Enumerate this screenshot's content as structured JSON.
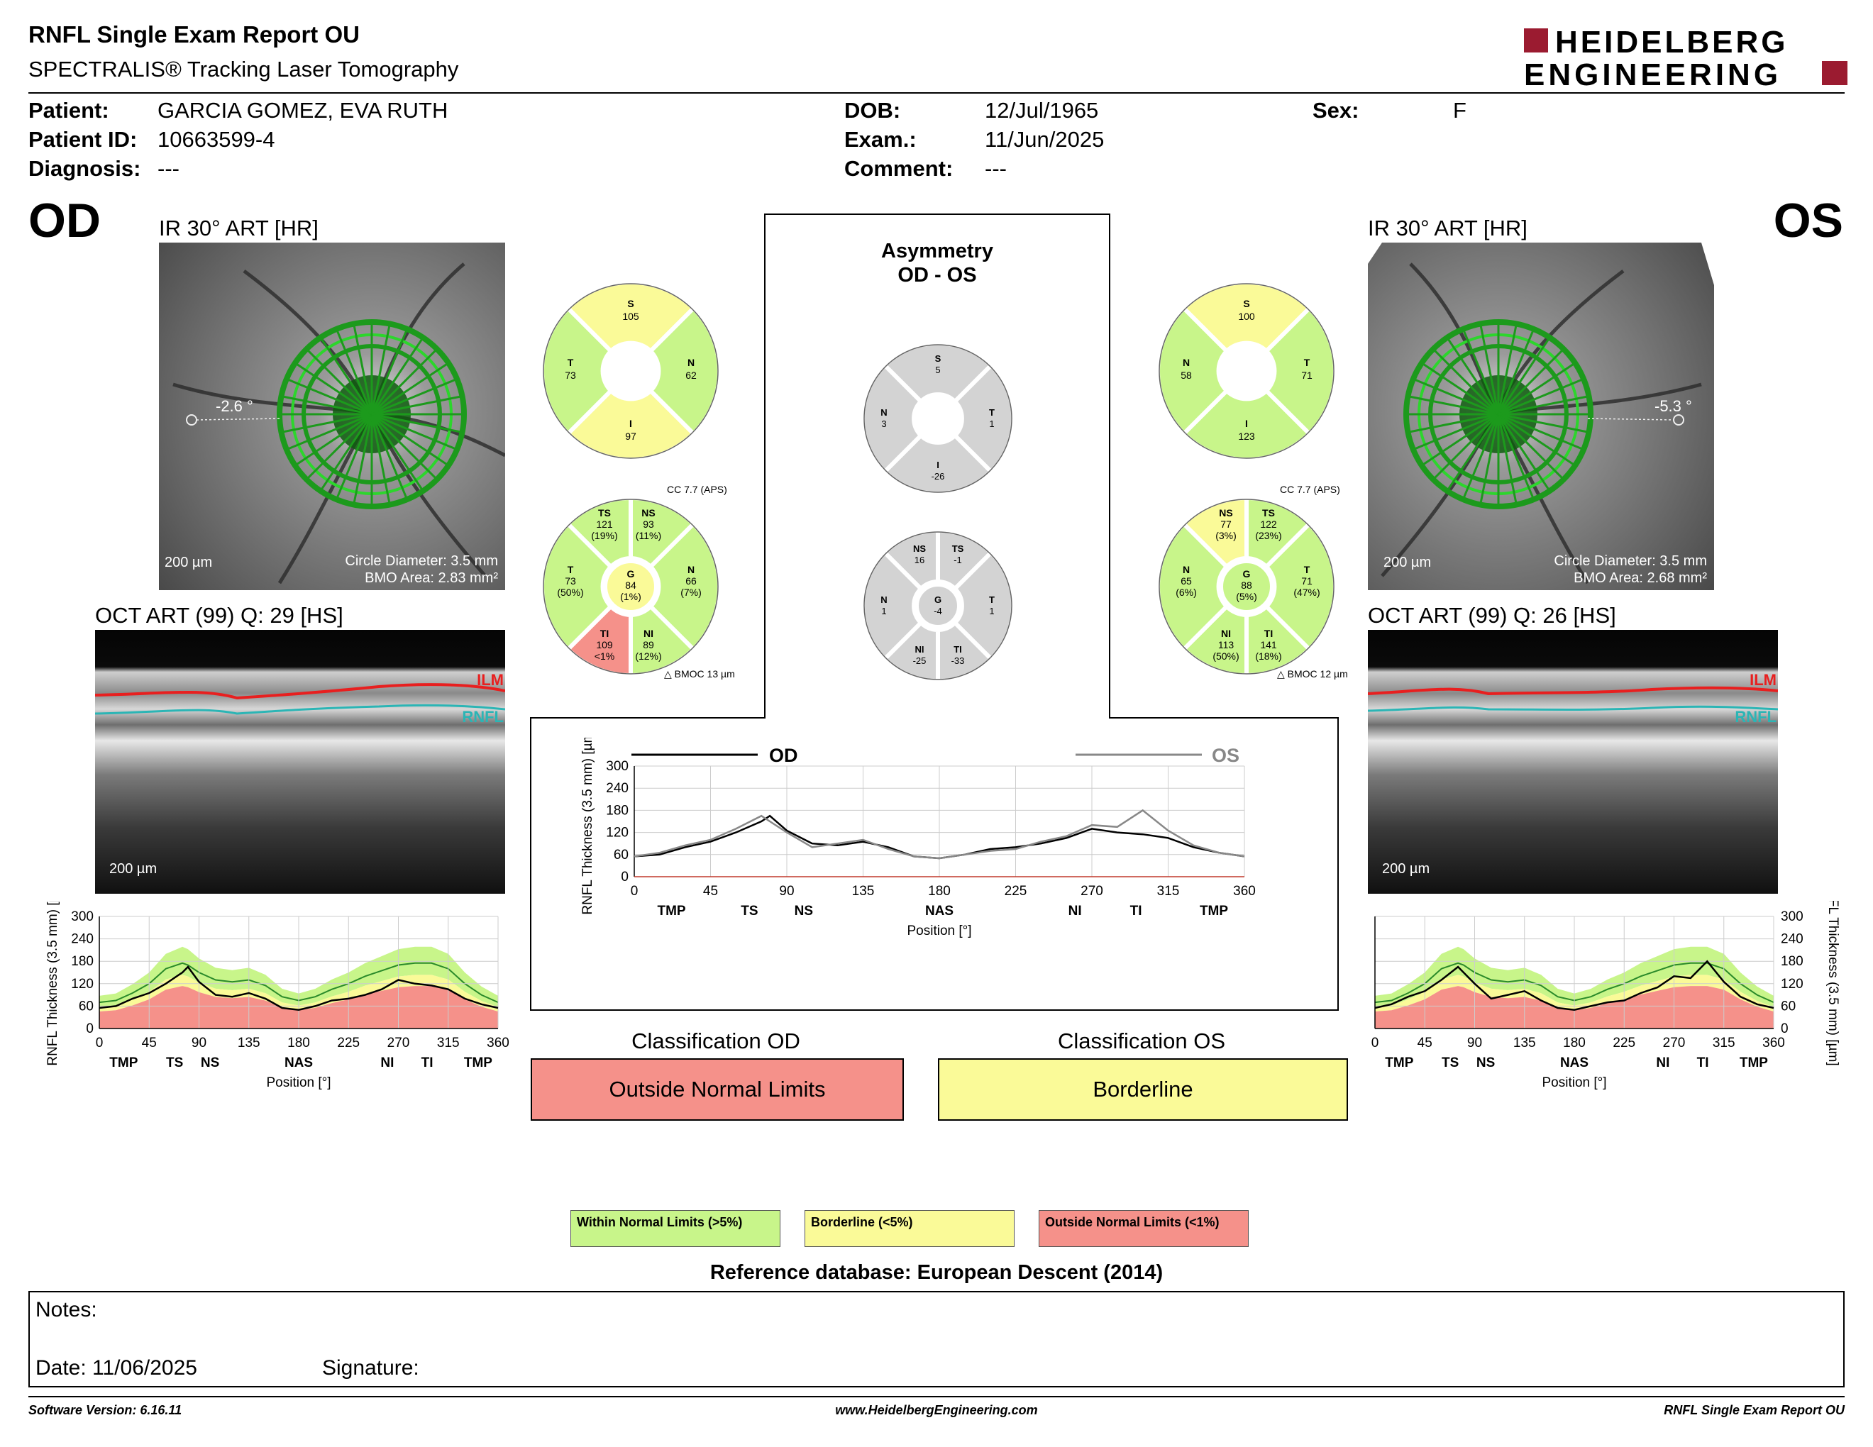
{
  "header": {
    "title": "RNFL Single Exam Report OU",
    "subtitle": "SPECTRALIS® Tracking Laser Tomography",
    "logo_line1": "HEIDELBERG",
    "logo_line2": "ENGINEERING"
  },
  "patient": {
    "patient_label": "Patient:",
    "patient_value": "GARCIA GOMEZ, EVA RUTH",
    "id_label": "Patient ID:",
    "id_value": "10663599-4",
    "diagnosis_label": "Diagnosis:",
    "diagnosis_value": "---",
    "dob_label": "DOB:",
    "dob_value": "12/Jul/1965",
    "exam_label": "Exam.:",
    "exam_value": "11/Jun/2025",
    "comment_label": "Comment:",
    "comment_value": "---",
    "sex_label": "Sex:",
    "sex_value": "F"
  },
  "od": {
    "eye": "OD",
    "ir_title": "IR 30° ART [HR]",
    "angle": "-2.6 °",
    "scale": "200 µm",
    "circle_diameter": "Circle Diameter: 3.5 mm",
    "bmo_area": "BMO Area: 2.83 mm²",
    "oct_title": "OCT ART (99) Q: 29 [HS]",
    "oct_scale": "200 µm",
    "ilm": "ILM",
    "rnfl": "RNFL",
    "cc": "CC 7.7 (APS)",
    "bmoc": "BMOC 13 µm",
    "quad": {
      "S": "105",
      "T": "73",
      "N": "62",
      "I": "97"
    },
    "sect": {
      "TS": [
        "121",
        "(19%)"
      ],
      "NS": [
        "93",
        "(11%)"
      ],
      "T": [
        "73",
        "(50%)"
      ],
      "N": [
        "66",
        "(7%)"
      ],
      "G": [
        "84",
        "(1%)"
      ],
      "TI": [
        "109",
        "<1%"
      ],
      "NI": [
        "89",
        "(12%)"
      ]
    }
  },
  "os": {
    "eye": "OS",
    "ir_title": "IR 30° ART [HR]",
    "angle": "-5.3 °",
    "scale": "200 µm",
    "circle_diameter": "Circle Diameter: 3.5 mm",
    "bmo_area": "BMO Area: 2.68 mm²",
    "oct_title": "OCT ART (99) Q: 26 [HS]",
    "oct_scale": "200 µm",
    "ilm": "ILM",
    "rnfl": "RNFL",
    "cc": "CC 7.7 (APS)",
    "bmoc": "BMOC 12 µm",
    "quad": {
      "S": "100",
      "N": "58",
      "T": "71",
      "I": "123"
    },
    "sect": {
      "NS": [
        "77",
        "(3%)"
      ],
      "TS": [
        "122",
        "(23%)"
      ],
      "N": [
        "65",
        "(6%)"
      ],
      "T": [
        "71",
        "(47%)"
      ],
      "G": [
        "88",
        "(5%)"
      ],
      "NI": [
        "113",
        "(50%)"
      ],
      "TI": [
        "141",
        "(18%)"
      ]
    }
  },
  "asym": {
    "title1": "Asymmetry",
    "title2": "OD - OS",
    "quad": {
      "S": "5",
      "N": "3",
      "T": "1",
      "I": "-26"
    },
    "sect": {
      "NS": "16",
      "TS": "-1",
      "N": "1",
      "G": "-4",
      "T": "1",
      "NI": "-25",
      "TI": "-33"
    }
  },
  "labels": {
    "S": "S",
    "T": "T",
    "N": "N",
    "I": "I",
    "TS": "TS",
    "NS": "NS",
    "G": "G",
    "TI": "TI",
    "NI": "NI"
  },
  "plot_common": {
    "ylabel": "RNFL Thickness (3.5 mm) [µm]",
    "xlabel": "Position [°]",
    "yticks": [
      "300",
      "240",
      "180",
      "120",
      "60",
      "0"
    ],
    "xticks": [
      "0",
      "45",
      "90",
      "135",
      "180",
      "225",
      "270",
      "315",
      "360"
    ],
    "regions": [
      "TMP",
      "TS",
      "NS",
      "NAS",
      "NI",
      "TI",
      "TMP"
    ]
  },
  "compare": {
    "od_label": "OD",
    "os_label": "OS"
  },
  "classification": {
    "od_title": "Classification OD",
    "od_value": "Outside Normal Limits",
    "os_title": "Classification OS",
    "os_value": "Borderline"
  },
  "legend": {
    "within": "Within Normal Limits (>5%)",
    "borderline": "Borderline (<5%)",
    "outside": "Outside Normal Limits (<1%)",
    "reference": "Reference database: European Descent (2014)"
  },
  "notes": {
    "notes_label": "Notes:",
    "date_label": "Date: 11/06/2025",
    "signature_label": "Signature:"
  },
  "footer": {
    "software": "Software Version: 6.16.11",
    "website": "www.HeidelbergEngineering.com",
    "report": "RNFL Single Exam Report OU"
  },
  "colors": {
    "normal": "#c8f58a",
    "borderline": "#fafa98",
    "outside": "#f5918a",
    "asym": "#d3d3d3",
    "brand": "#9b1b30"
  },
  "chart_data": [
    {
      "type": "line",
      "name": "OD thickness profile",
      "xlim": [
        0,
        360
      ],
      "ylim": [
        0,
        300
      ],
      "x": [
        0,
        15,
        30,
        45,
        60,
        75,
        80,
        90,
        105,
        120,
        135,
        150,
        165,
        180,
        195,
        210,
        225,
        240,
        255,
        270,
        285,
        300,
        315,
        330,
        345,
        360
      ],
      "series": [
        {
          "values": [
            55,
            60,
            80,
            95,
            120,
            150,
            165,
            125,
            90,
            85,
            95,
            80,
            55,
            50,
            60,
            75,
            80,
            90,
            105,
            130,
            120,
            115,
            105,
            80,
            65,
            55
          ]
        }
      ],
      "normal_mean": [
        70,
        75,
        95,
        120,
        160,
        175,
        170,
        150,
        130,
        125,
        130,
        115,
        85,
        75,
        85,
        105,
        120,
        140,
        155,
        170,
        175,
        175,
        160,
        120,
        90,
        70
      ]
    },
    {
      "type": "line",
      "name": "OS thickness profile",
      "xlim": [
        0,
        360
      ],
      "ylim": [
        0,
        300
      ],
      "x": [
        0,
        15,
        30,
        45,
        60,
        75,
        80,
        90,
        105,
        120,
        135,
        150,
        165,
        180,
        195,
        210,
        225,
        240,
        255,
        270,
        285,
        300,
        315,
        330,
        345,
        360
      ],
      "series": [
        {
          "values": [
            55,
            65,
            85,
            100,
            130,
            165,
            150,
            120,
            80,
            90,
            100,
            75,
            55,
            50,
            60,
            70,
            75,
            95,
            110,
            140,
            135,
            180,
            125,
            85,
            65,
            55
          ]
        }
      ],
      "normal_mean": [
        70,
        75,
        95,
        120,
        160,
        175,
        170,
        150,
        130,
        125,
        130,
        115,
        85,
        75,
        85,
        105,
        120,
        140,
        155,
        170,
        175,
        175,
        160,
        120,
        90,
        70
      ]
    },
    {
      "type": "line",
      "name": "OD vs OS",
      "xlim": [
        0,
        360
      ],
      "ylim": [
        0,
        300
      ],
      "x": [
        0,
        15,
        30,
        45,
        60,
        75,
        80,
        90,
        105,
        120,
        135,
        150,
        165,
        180,
        195,
        210,
        225,
        240,
        255,
        270,
        285,
        300,
        315,
        330,
        345,
        360
      ],
      "series": [
        {
          "name": "OD",
          "values": [
            55,
            60,
            80,
            95,
            120,
            150,
            165,
            125,
            90,
            85,
            95,
            80,
            55,
            50,
            60,
            75,
            80,
            90,
            105,
            130,
            120,
            115,
            105,
            80,
            65,
            55
          ]
        },
        {
          "name": "OS",
          "values": [
            55,
            65,
            85,
            100,
            130,
            165,
            150,
            120,
            80,
            90,
            100,
            75,
            55,
            50,
            60,
            70,
            75,
            95,
            110,
            140,
            135,
            180,
            125,
            85,
            65,
            55
          ]
        }
      ]
    }
  ]
}
